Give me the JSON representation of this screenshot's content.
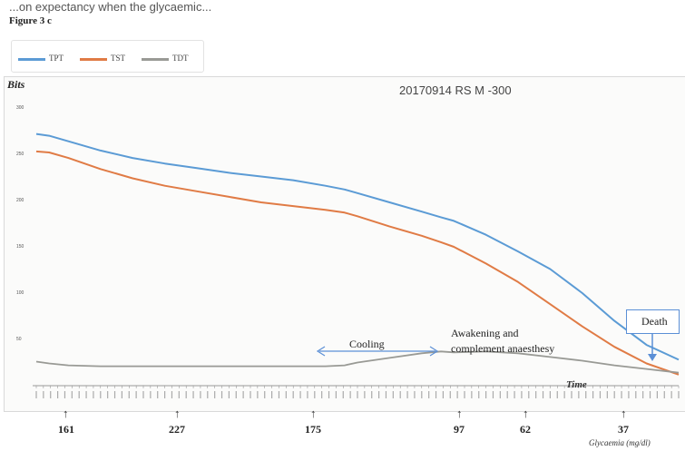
{
  "caption": "...on expectancy when the glycaemic...",
  "figure_label": "Figure 3 c",
  "colors": {
    "TPT": "#5b9bd5",
    "TST": "#e07b45",
    "TDT": "#999a95"
  },
  "chart_data": {
    "type": "line",
    "title": "20170914 RS M  -300",
    "ylabel": "Bits",
    "xlabel": "Time",
    "ylim": [
      0,
      300
    ],
    "yticks": [
      50,
      100,
      150,
      200,
      250,
      300
    ],
    "grid": false,
    "legend_position": "top-left",
    "x_domain": [
      0,
      100
    ],
    "series": [
      {
        "name": "TPT",
        "x": [
          0,
          2,
          5,
          10,
          15,
          20,
          25,
          30,
          35,
          40,
          45,
          48,
          50,
          55,
          60,
          63,
          65,
          70,
          75,
          80,
          85,
          90,
          95,
          100
        ],
        "values": [
          272,
          270,
          264,
          254,
          246,
          240,
          235,
          230,
          226,
          222,
          216,
          212,
          208,
          198,
          188,
          182,
          178,
          163,
          145,
          126,
          100,
          70,
          44,
          28
        ]
      },
      {
        "name": "TST",
        "x": [
          0,
          2,
          5,
          10,
          15,
          20,
          25,
          30,
          35,
          40,
          45,
          48,
          50,
          55,
          60,
          63,
          65,
          70,
          75,
          80,
          85,
          90,
          95,
          100
        ],
        "values": [
          253,
          252,
          246,
          234,
          224,
          216,
          210,
          204,
          198,
          194,
          190,
          187,
          183,
          172,
          162,
          155,
          150,
          132,
          112,
          88,
          64,
          42,
          24,
          12
        ]
      },
      {
        "name": "TDT",
        "x": [
          0,
          2,
          5,
          10,
          20,
          30,
          40,
          45,
          48,
          50,
          55,
          60,
          63,
          65,
          70,
          75,
          80,
          85,
          90,
          95,
          100
        ],
        "values": [
          26,
          24,
          22,
          21,
          21,
          21,
          21,
          21,
          22,
          25,
          30,
          35,
          37,
          36,
          37,
          35,
          31,
          27,
          22,
          18,
          14
        ]
      }
    ],
    "glycaemia": {
      "label": "Glycaemia (mg/dl)",
      "values": [
        "161",
        "227",
        "175",
        "97",
        "62",
        "37"
      ]
    },
    "annotations": {
      "cooling": "Cooling",
      "awakening_line1": "Awakening and",
      "awakening_line2": "complement anaesthesy",
      "death": "Death"
    }
  }
}
